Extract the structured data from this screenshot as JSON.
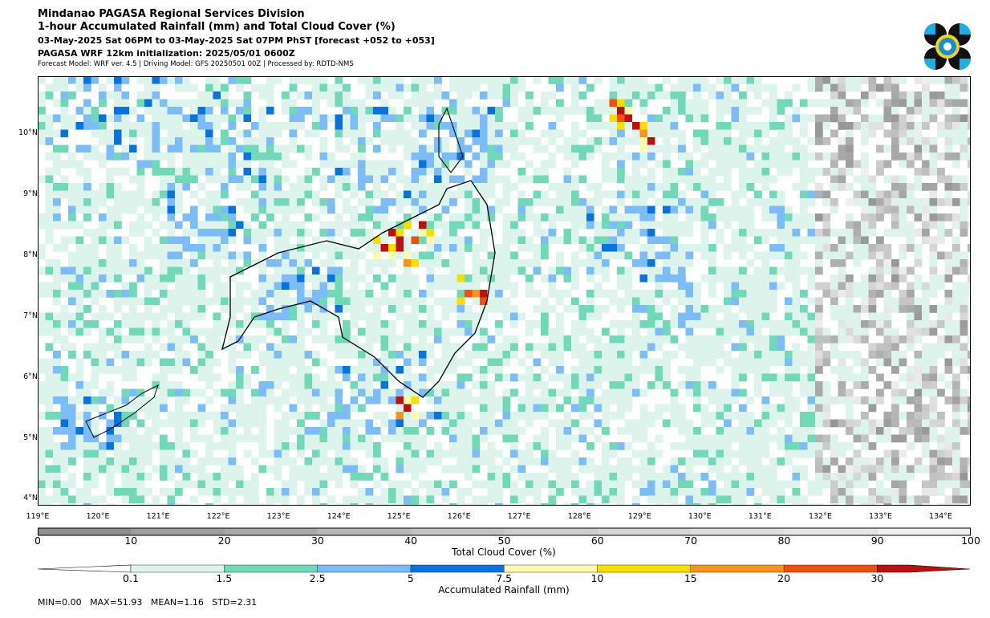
{
  "header": {
    "line1": "Mindanao PAGASA Regional Services Division",
    "line2": "1-hour Accumulated Rainfall (mm) and Total Cloud Cover (%)",
    "line3": "03-May-2025 Sat 06PM to 03-May-2025 Sat 07PM PhST [forecast +052 to +053]",
    "line4": "PAGASA WRF 12km initialization: 2025/05/01 0600Z",
    "line5": "Forecast Model: WRF ver. 4.5 | Driving Model: GFS 20250501 00Z | Processed by: RDTD-NMS"
  },
  "map": {
    "lon_range": [
      119,
      134.5
    ],
    "lat_range": [
      3.9,
      10.95
    ],
    "lat_ticks": [
      "10°N",
      "9°N",
      "8°N",
      "7°N",
      "6°N",
      "5°N",
      "4°N"
    ],
    "lat_values": [
      10,
      9,
      8,
      7,
      6,
      5,
      4
    ],
    "lon_ticks": [
      "119°E",
      "120°E",
      "121°E",
      "122°E",
      "123°E",
      "124°E",
      "125°E",
      "126°E",
      "127°E",
      "128°E",
      "129°E",
      "130°E",
      "131°E",
      "132°E",
      "133°E",
      "134°E"
    ],
    "lon_values": [
      119,
      120,
      121,
      122,
      123,
      124,
      125,
      126,
      127,
      128,
      129,
      130,
      131,
      132,
      133,
      134
    ]
  },
  "cloud_colorbar": {
    "label": "Total Cloud Cover (%)",
    "ticks": [
      "0",
      "10",
      "20",
      "30",
      "40",
      "50",
      "60",
      "70",
      "80",
      "90",
      "100"
    ],
    "colors": [
      "#8e8e8e",
      "#9d9d9d",
      "#a9a9a9",
      "#b7b7b7",
      "#c3c3c3",
      "#cdcdcd",
      "#d6d6d6",
      "#dedede",
      "#e6e6e6",
      "#efefef"
    ]
  },
  "rain_colorbar": {
    "label": "Accumulated Rainfall (mm)",
    "ticks": [
      "0.1",
      "1.5",
      "2.5",
      "5",
      "7.5",
      "10",
      "15",
      "20",
      "30"
    ],
    "colors": [
      "#dcf4ec",
      "#72d9b8",
      "#7cbdf8",
      "#0a72dc",
      "#fffcb0",
      "#f7de05",
      "#f59520",
      "#ef5010",
      "#bc1010"
    ]
  },
  "stats": {
    "text": "MIN=0.00   MAX=51.93   MEAN=1.16   STD=2.31"
  }
}
